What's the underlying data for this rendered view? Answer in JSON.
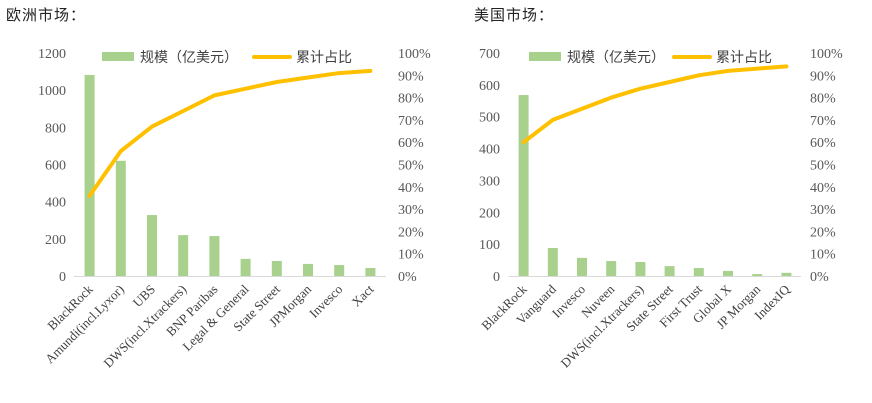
{
  "colors": {
    "bar": "#a9d18e",
    "line": "#ffc000",
    "axis": "#d9d9d9",
    "text": "#595959"
  },
  "legend": {
    "bar_label": "规模（亿美元）",
    "line_label": "累计占比"
  },
  "chart_data": [
    {
      "type": "bar+line",
      "title": "欧洲市场：",
      "categories": [
        "BlackRock",
        "Amundi(incl.Lyxor)",
        "UBS",
        "DWS(incl.Xtrackers)",
        "BNP Paribas",
        "Legal & General",
        "State Street",
        "JPMorgan",
        "Invesco",
        "Xact"
      ],
      "series": [
        {
          "name": "规模（亿美元）",
          "axis": "left",
          "type": "bar",
          "values": [
            1082,
            620,
            328,
            220,
            215,
            92,
            81,
            65,
            59,
            43
          ]
        },
        {
          "name": "累计占比",
          "axis": "right",
          "type": "line",
          "values": [
            36,
            56,
            67,
            74,
            81,
            84,
            87,
            89,
            91,
            92
          ]
        }
      ],
      "left_axis": {
        "min": 0,
        "max": 1200,
        "ticks": [
          "0",
          "200",
          "400",
          "600",
          "800",
          "1000",
          "1200"
        ]
      },
      "right_axis": {
        "min": 0,
        "max": 100,
        "ticks": [
          "0%",
          "10%",
          "20%",
          "30%",
          "40%",
          "50%",
          "60%",
          "70%",
          "80%",
          "90%",
          "100%"
        ]
      },
      "grid": false,
      "legend_position": "top"
    },
    {
      "type": "bar+line",
      "title": "美国市场：",
      "categories": [
        "BlackRock",
        "Vanguard",
        "Invesco",
        "Nuveen",
        "DWS(incl.Xtrackers)",
        "State Street",
        "First Trust",
        "Global X",
        "JP Morgan",
        "IndexIQ"
      ],
      "series": [
        {
          "name": "规模（亿美元）",
          "axis": "left",
          "type": "bar",
          "values": [
            568,
            88,
            57,
            47,
            44,
            31,
            25,
            16,
            6,
            10
          ]
        },
        {
          "name": "累计占比",
          "axis": "right",
          "type": "line",
          "values": [
            60,
            70,
            75,
            80,
            84,
            87,
            90,
            92,
            93,
            94
          ]
        }
      ],
      "left_axis": {
        "min": 0,
        "max": 700,
        "ticks": [
          "0",
          "100",
          "200",
          "300",
          "400",
          "500",
          "600",
          "700"
        ]
      },
      "right_axis": {
        "min": 0,
        "max": 100,
        "ticks": [
          "0%",
          "10%",
          "20%",
          "30%",
          "40%",
          "50%",
          "60%",
          "70%",
          "80%",
          "90%",
          "100%"
        ]
      },
      "grid": false,
      "legend_position": "top"
    }
  ]
}
